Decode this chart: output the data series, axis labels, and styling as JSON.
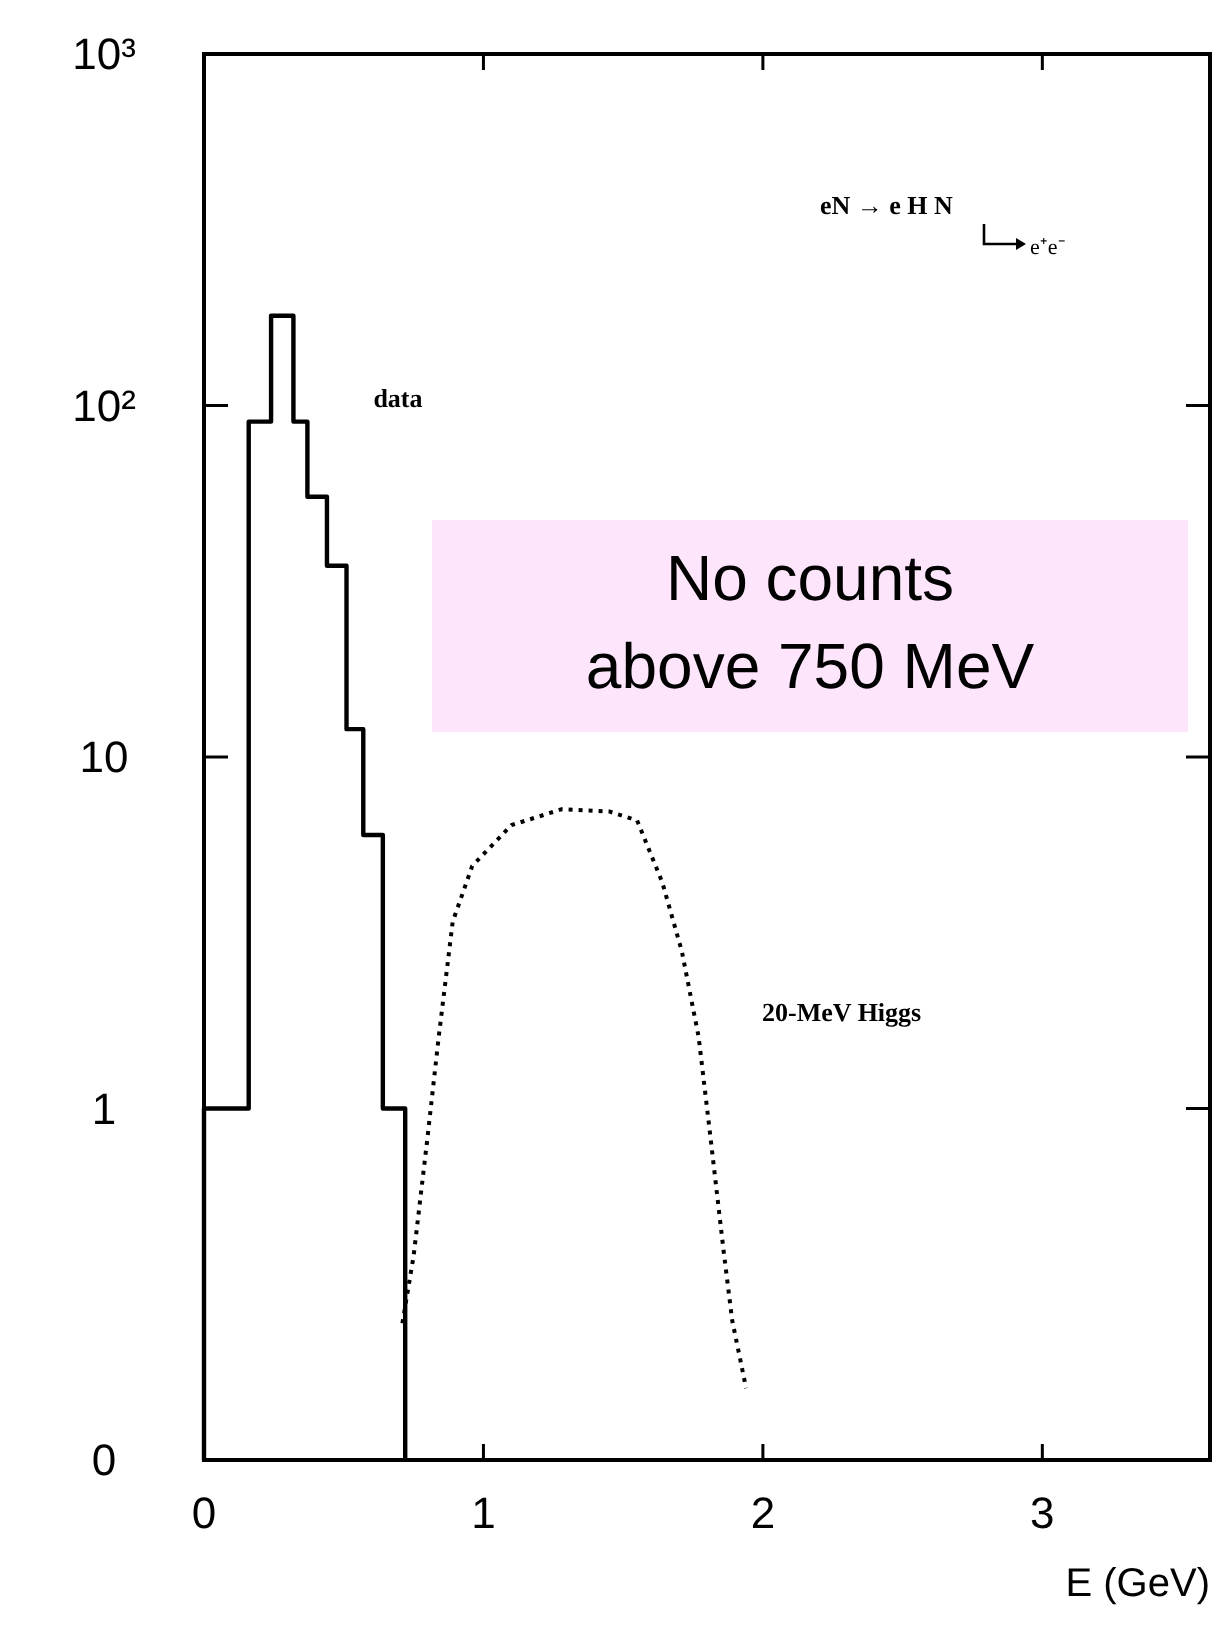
{
  "chart_data": {
    "type": "histogram",
    "xlabel": "E (GeV)",
    "log": "y",
    "xlim": [
      0,
      3.6
    ],
    "ylim": [
      0.1,
      1000
    ],
    "xticks": [
      0,
      1,
      2,
      3
    ],
    "yticks": [
      {
        "value": 0.1,
        "label": "0"
      },
      1,
      10,
      {
        "value": 100,
        "label": "10²"
      },
      {
        "value": 1000,
        "label": "10³"
      }
    ],
    "series": [
      {
        "name": "data",
        "color": "#000000",
        "bins": [
          0,
          0.16,
          0.24,
          0.32,
          0.37,
          0.44,
          0.51,
          0.57,
          0.64,
          0.72
        ],
        "values": [
          1,
          90,
          180,
          90,
          55,
          35,
          12,
          6,
          1
        ]
      },
      {
        "name": "20-MeV Higgs",
        "type": "line",
        "line_style": "dotted",
        "color": "#000000",
        "x": [
          0.71,
          0.75,
          0.8,
          0.84,
          0.89,
          0.96,
          1.1,
          1.28,
          1.45,
          1.55,
          1.64,
          1.71,
          1.77,
          1.81,
          1.86,
          1.89,
          1.94
        ],
        "values": [
          0.245,
          0.38,
          0.83,
          1.6,
          3.4,
          4.9,
          6.4,
          7.1,
          7.0,
          6.6,
          4.4,
          2.8,
          1.6,
          0.86,
          0.39,
          0.25,
          0.16
        ]
      }
    ],
    "annotations": [
      "eN → e H N",
      "e⁺e⁻",
      "No counts above 750 MeV"
    ]
  }
}
